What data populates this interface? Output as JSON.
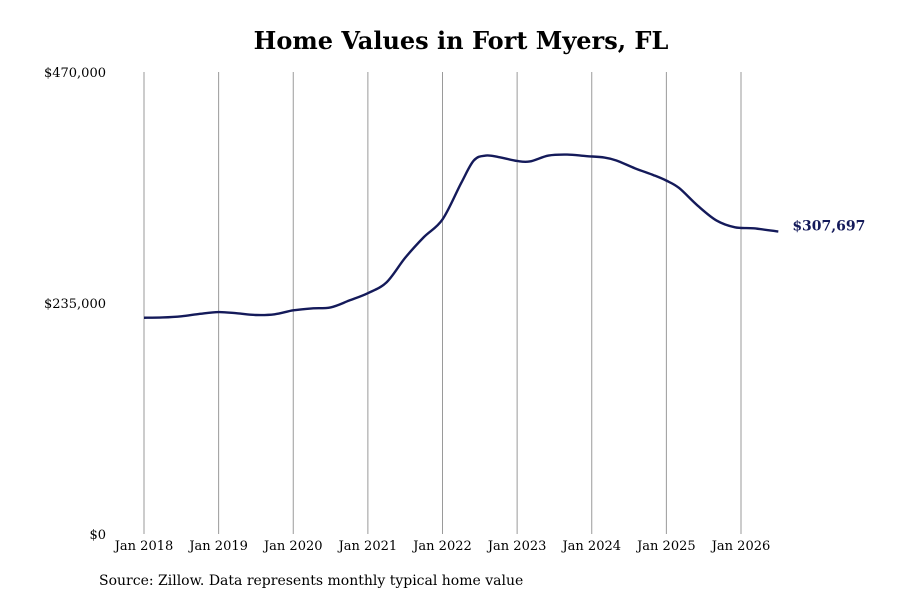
{
  "source_note": "Source: Zillow. Data represents monthly typical home value",
  "colors": {
    "line": "#141a5a",
    "grid": "#9a9a9a"
  },
  "chart_data": {
    "type": "line",
    "title": "Home Values in Fort Myers, FL",
    "xlabel": "",
    "ylabel": "",
    "ylim": [
      0,
      470000
    ],
    "y_ticks": [
      {
        "value": 0,
        "label": "$0"
      },
      {
        "value": 235000,
        "label": "$235,000"
      },
      {
        "value": 470000,
        "label": "$470,000"
      }
    ],
    "x_ticks": [
      {
        "value": 2018.0,
        "label": "Jan 2018"
      },
      {
        "value": 2019.0,
        "label": "Jan 2019"
      },
      {
        "value": 2020.0,
        "label": "Jan 2020"
      },
      {
        "value": 2021.0,
        "label": "Jan 2021"
      },
      {
        "value": 2022.0,
        "label": "Jan 2022"
      },
      {
        "value": 2023.0,
        "label": "Jan 2023"
      },
      {
        "value": 2024.0,
        "label": "Jan 2024"
      },
      {
        "value": 2025.0,
        "label": "Jan 2025"
      },
      {
        "value": 2026.0,
        "label": "Jan 2026"
      }
    ],
    "xlim": [
      2018.0,
      2026.5
    ],
    "grid": "vertical",
    "end_label": "$307,697",
    "series": [
      {
        "x": [
          2018.0,
          2018.25,
          2018.5,
          2018.75,
          2019.0,
          2019.25,
          2019.5,
          2019.75,
          2020.0,
          2020.25,
          2020.5,
          2020.75,
          2021.0,
          2021.25,
          2021.5,
          2021.75,
          2022.0,
          2022.25,
          2022.42,
          2022.58,
          2022.75,
          2023.0,
          2023.17,
          2023.42,
          2023.67,
          2023.92,
          2024.17,
          2024.33,
          2024.58,
          2024.83,
          2025.0,
          2025.17,
          2025.42,
          2025.67,
          2025.92,
          2026.17,
          2026.5
        ],
        "y": [
          220000,
          220300,
          221500,
          224000,
          225800,
          224500,
          222800,
          223500,
          227500,
          229500,
          230500,
          237500,
          245000,
          256000,
          281000,
          302000,
          320000,
          357000,
          380000,
          385000,
          383500,
          379500,
          379000,
          385000,
          386000,
          384500,
          383000,
          380000,
          372000,
          365000,
          359500,
          352000,
          334000,
          319000,
          312000,
          311000,
          307697
        ]
      }
    ]
  }
}
